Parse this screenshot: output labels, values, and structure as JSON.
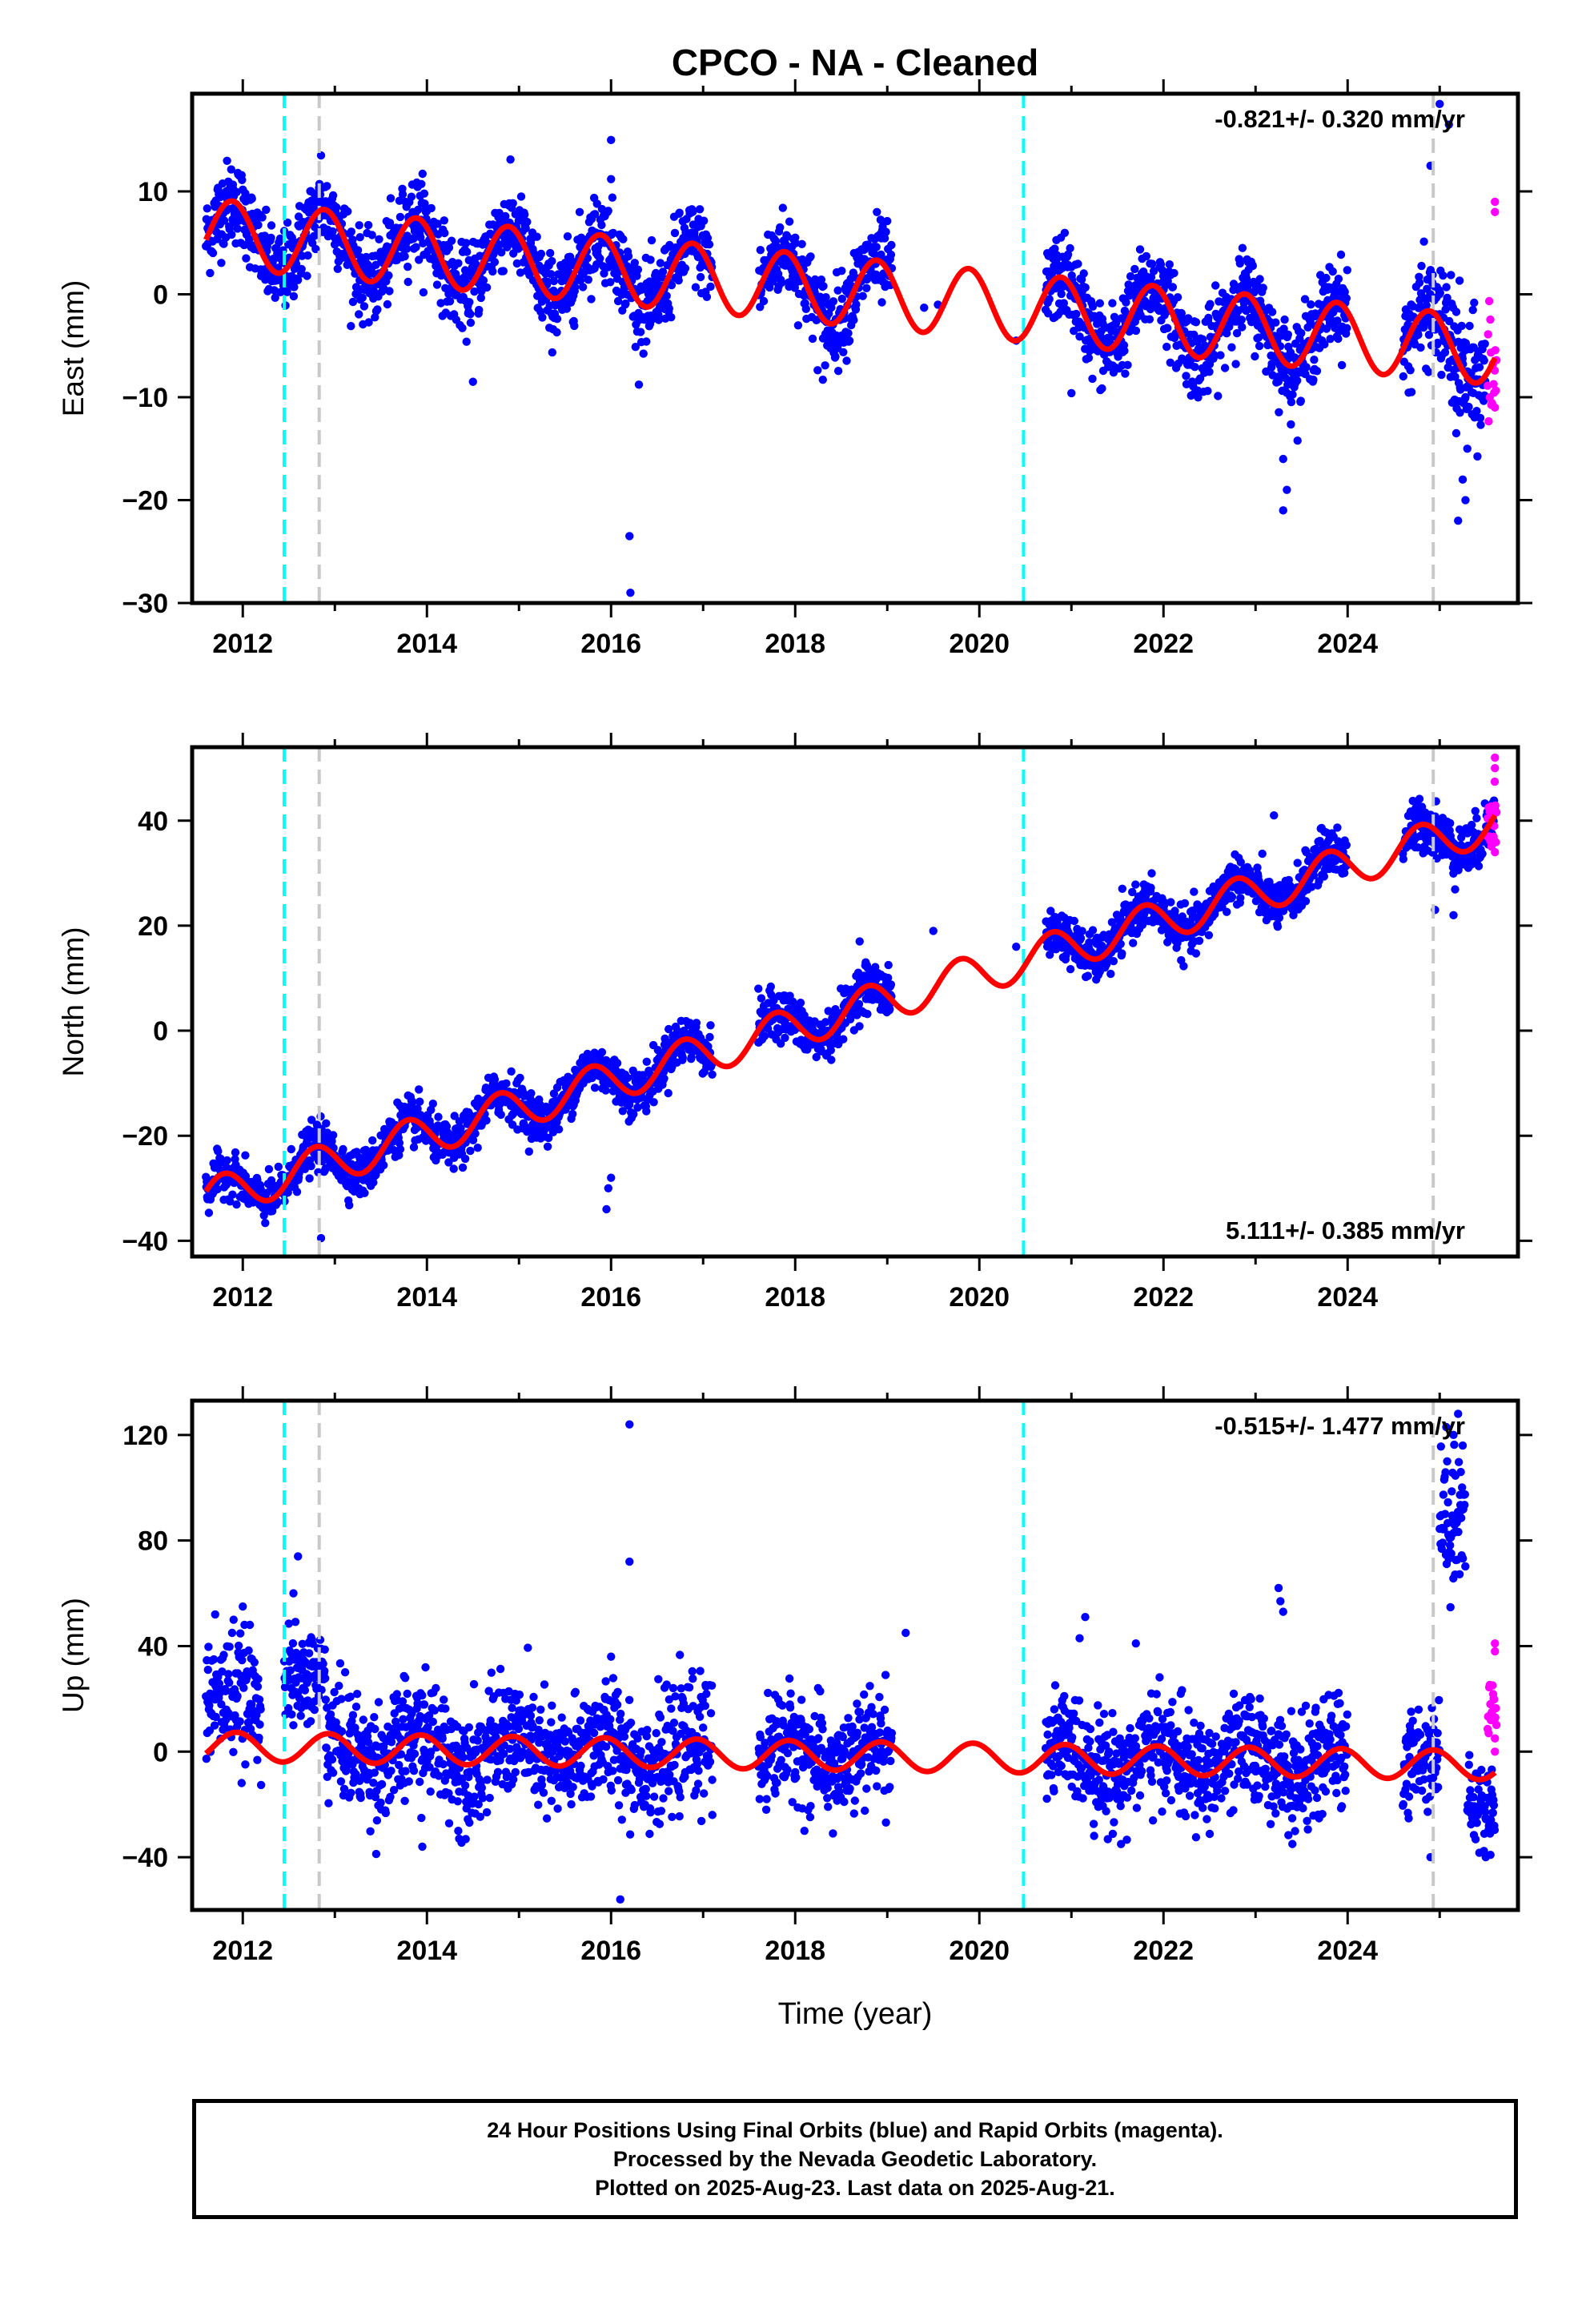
{
  "title": "CPCO  - NA - Cleaned",
  "caption": [
    "24 Hour Positions Using Final Orbits (blue) and Rapid Orbits (magenta).",
    "Processed by the Nevada Geodetic Laboratory.",
    "Plotted on 2025-Aug-23. Last data on 2025-Aug-21."
  ],
  "colors": {
    "final_orbits": "#0000ff",
    "rapid_orbits": "#ff00ff",
    "model_fit": "#ff0000",
    "equipment_change": "#00ffff",
    "other_event": "#c8c8c8"
  },
  "chart_data": [
    {
      "type": "scatter",
      "ylabel": "East (mm)",
      "xlabel": "",
      "xlim": [
        2011.45,
        2025.85
      ],
      "ylim": [
        -30,
        19.5
      ],
      "x_ticks": [
        2012,
        2014,
        2016,
        2018,
        2020,
        2022,
        2024
      ],
      "y_ticks": [
        10,
        0,
        -10,
        -20,
        -30
      ],
      "rate_label": "-0.821+/- 0.320 mm/yr",
      "rate_position": "top-right",
      "event_lines": [
        {
          "x": 2012.45,
          "kind": "equipment_change"
        },
        {
          "x": 2012.83,
          "kind": "other_event"
        },
        {
          "x": 2020.48,
          "kind": "equipment_change"
        },
        {
          "x": 2024.93,
          "kind": "other_event"
        }
      ],
      "fit": {
        "offset": 6.0,
        "rate": -0.821,
        "amplitude": 3.3,
        "phase": 2.3,
        "t0": 2011.6,
        "t1": 2025.6
      },
      "series": [
        {
          "kind": "final_orbits",
          "segments": [
            {
              "t0": 2011.6,
              "t1": 2012.45,
              "noise": 2.0
            },
            {
              "t0": 2012.45,
              "t1": 2017.1,
              "noise": 2.0
            },
            {
              "t0": 2017.6,
              "t1": 2019.05,
              "noise": 2.0
            },
            {
              "t0": 2020.72,
              "t1": 2024.0,
              "noise": 2.0
            },
            {
              "t0": 2024.6,
              "t1": 2025.05,
              "noise": 2.5
            },
            {
              "t0": 2025.05,
              "t1": 2025.5,
              "noise": 3.0
            }
          ],
          "outliers": [
            [
              2016.2,
              -23.5
            ],
            [
              2016.21,
              -29
            ],
            [
              2016.0,
              15
            ],
            [
              2016.0,
              11.2
            ],
            [
              2023.3,
              -21
            ],
            [
              2023.3,
              -16
            ],
            [
              2023.34,
              -19
            ],
            [
              2025.0,
              18.5
            ],
            [
              2025.1,
              16.5
            ],
            [
              2024.9,
              12.5
            ],
            [
              2025.2,
              -22
            ],
            [
              2025.25,
              -18
            ],
            [
              2025.3,
              -15
            ],
            [
              2025.22,
              -11.5
            ],
            [
              2025.28,
              -20
            ],
            [
              2025.18,
              -13.5
            ],
            [
              2012.85,
              13.5
            ],
            [
              2014.5,
              -8.5
            ],
            [
              2018.3,
              -8.3
            ],
            [
              2021.0,
              -9.6
            ],
            [
              2019.0,
              3
            ],
            [
              2019.4,
              -1.3
            ],
            [
              2019.55,
              -1.0
            ],
            [
              2020.4,
              -4.5
            ]
          ]
        },
        {
          "kind": "rapid_orbits",
          "segments": [
            {
              "t0": 2025.52,
              "t1": 2025.62,
              "noise": 4.0
            }
          ],
          "outliers": [
            [
              2025.6,
              9
            ],
            [
              2025.6,
              8
            ],
            [
              2025.6,
              -11
            ]
          ]
        }
      ]
    },
    {
      "type": "scatter",
      "ylabel": "North (mm)",
      "xlabel": "",
      "xlim": [
        2011.45,
        2025.85
      ],
      "ylim": [
        -43,
        54
      ],
      "x_ticks": [
        2012,
        2014,
        2016,
        2018,
        2020,
        2022,
        2024
      ],
      "y_ticks": [
        40,
        20,
        0,
        -20,
        -40
      ],
      "rate_label": "5.111+/- 0.385 mm/yr",
      "rate_position": "bottom-right",
      "event_lines": [
        {
          "x": 2012.45,
          "kind": "equipment_change"
        },
        {
          "x": 2012.83,
          "kind": "other_event"
        },
        {
          "x": 2020.48,
          "kind": "equipment_change"
        },
        {
          "x": 2024.93,
          "kind": "other_event"
        }
      ],
      "fit": {
        "offset": -32.0,
        "rate": 5.111,
        "amplitude": 3.8,
        "phase": 2.9,
        "t0": 2011.6,
        "t1": 2025.6
      },
      "series": [
        {
          "kind": "final_orbits",
          "segments": [
            {
              "t0": 2011.6,
              "t1": 2012.45,
              "noise": 2.0
            },
            {
              "t0": 2012.45,
              "t1": 2017.1,
              "noise": 2.2
            },
            {
              "t0": 2017.6,
              "t1": 2019.05,
              "noise": 2.2
            },
            {
              "t0": 2020.72,
              "t1": 2024.0,
              "noise": 2.2
            },
            {
              "t0": 2024.6,
              "t1": 2025.6,
              "noise": 2.5
            }
          ],
          "outliers": [
            [
              2015.95,
              -34
            ],
            [
              2015.97,
              -30
            ],
            [
              2016.0,
              -28
            ],
            [
              2012.85,
              -39.5
            ],
            [
              2017.6,
              8
            ],
            [
              2019.5,
              19
            ],
            [
              2019.0,
              4
            ],
            [
              2020.4,
              16
            ],
            [
              2024.95,
              23
            ],
            [
              2025.15,
              22
            ],
            [
              2018.7,
              17
            ],
            [
              2023.2,
              41
            ]
          ]
        },
        {
          "kind": "rapid_orbits",
          "segments": [
            {
              "t0": 2025.52,
              "t1": 2025.62,
              "noise": 4.0
            }
          ],
          "outliers": [
            [
              2025.6,
              52
            ],
            [
              2025.6,
              50
            ],
            [
              2025.6,
              34
            ],
            [
              2025.6,
              36
            ]
          ]
        }
      ]
    },
    {
      "type": "scatter",
      "ylabel": "Up (mm)",
      "xlabel": "Time (year)",
      "xlim": [
        2011.45,
        2025.85
      ],
      "ylim": [
        -60,
        133
      ],
      "x_ticks": [
        2012,
        2014,
        2016,
        2018,
        2020,
        2022,
        2024
      ],
      "y_ticks": [
        120,
        80,
        40,
        0,
        -40
      ],
      "rate_label": "-0.515+/- 1.477 mm/yr",
      "rate_position": "top-right",
      "event_lines": [
        {
          "x": 2012.45,
          "kind": "equipment_change"
        },
        {
          "x": 2012.83,
          "kind": "other_event"
        },
        {
          "x": 2020.48,
          "kind": "equipment_change"
        },
        {
          "x": 2024.93,
          "kind": "other_event"
        }
      ],
      "fit": {
        "offset": 2.0,
        "rate": -0.515,
        "amplitude": 5.5,
        "phase": 2.0,
        "t0": 2011.6,
        "t1": 2025.6
      },
      "series": [
        {
          "kind": "final_orbits",
          "segments": [
            {
              "t0": 2011.6,
              "t1": 2012.2,
              "noise": 11.0,
              "center": 20
            },
            {
              "t0": 2012.45,
              "t1": 2012.9,
              "noise": 9.0,
              "center": 28
            },
            {
              "t0": 2012.9,
              "t1": 2017.1,
              "noise": 11.0
            },
            {
              "t0": 2017.6,
              "t1": 2019.05,
              "noise": 10.0
            },
            {
              "t0": 2020.72,
              "t1": 2024.0,
              "noise": 10.0
            },
            {
              "t0": 2024.6,
              "t1": 2025.0,
              "noise": 10.0
            },
            {
              "t0": 2025.0,
              "t1": 2025.28,
              "noise": 14.0,
              "center": 92
            },
            {
              "t0": 2025.3,
              "t1": 2025.6,
              "noise": 8.0,
              "center": -17
            }
          ],
          "outliers": [
            [
              2016.2,
              124
            ],
            [
              2016.2,
              72
            ],
            [
              2016.1,
              -56
            ],
            [
              2012.6,
              74
            ],
            [
              2012.55,
              60
            ],
            [
              2013.95,
              -36
            ],
            [
              2014.35,
              -33
            ],
            [
              2019.2,
              45
            ],
            [
              2021.15,
              51
            ],
            [
              2021.7,
              41
            ],
            [
              2023.25,
              62
            ],
            [
              2023.27,
              57
            ],
            [
              2023.3,
              53
            ],
            [
              2024.9,
              -40
            ],
            [
              2025.2,
              128
            ],
            [
              2025.15,
              120
            ],
            [
              2025.25,
              116
            ],
            [
              2016.0,
              36
            ],
            [
              2011.7,
              52
            ],
            [
              2011.9,
              50
            ],
            [
              2012.0,
              55
            ],
            [
              2018.1,
              -30
            ],
            [
              2023.4,
              -35
            ],
            [
              2025.5,
              -40
            ],
            [
              2017.1,
              -24
            ]
          ]
        },
        {
          "kind": "rapid_orbits",
          "segments": [
            {
              "t0": 2025.52,
              "t1": 2025.62,
              "noise": 6.0,
              "center": 20
            }
          ],
          "outliers": [
            [
              2025.6,
              41
            ],
            [
              2025.6,
              38
            ],
            [
              2025.6,
              5
            ],
            [
              2025.6,
              0
            ]
          ]
        }
      ]
    }
  ]
}
